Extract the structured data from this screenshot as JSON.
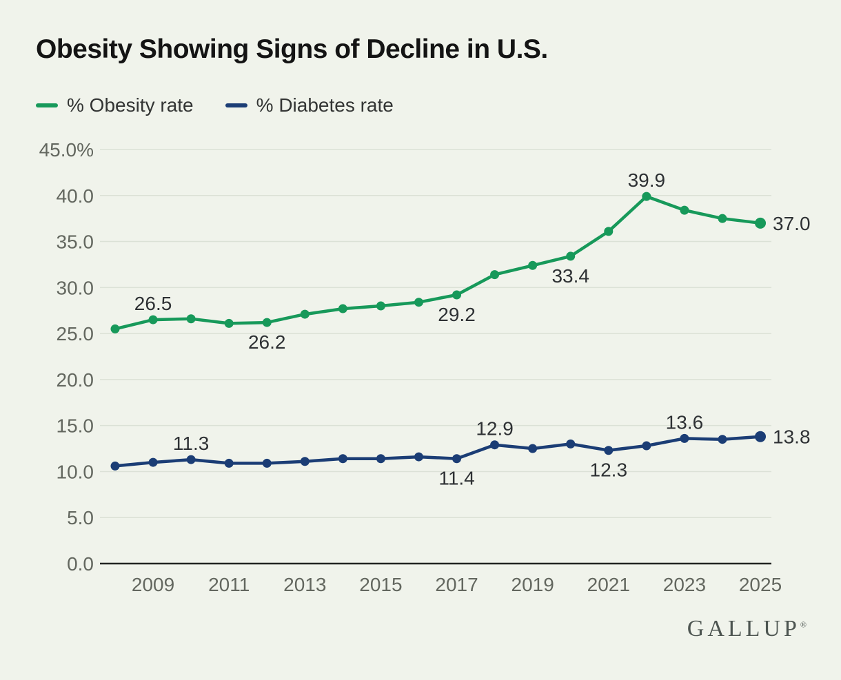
{
  "title": "Obesity Showing Signs of Decline in U.S.",
  "legend": [
    {
      "label": "% Obesity rate",
      "color": "#17995a"
    },
    {
      "label": "% Diabetes rate",
      "color": "#1b3d75"
    }
  ],
  "branding": {
    "logo": "GALLUP",
    "registered": "®"
  },
  "chart_data": {
    "type": "line",
    "x": [
      2008,
      2009,
      2010,
      2011,
      2012,
      2013,
      2014,
      2015,
      2016,
      2017,
      2018,
      2019,
      2020,
      2021,
      2022,
      2023,
      2024,
      2025
    ],
    "series": [
      {
        "name": "% Obesity rate",
        "color": "#17995a",
        "values": [
          25.5,
          26.5,
          26.6,
          26.1,
          26.2,
          27.1,
          27.7,
          28.0,
          28.4,
          29.2,
          31.4,
          32.4,
          33.4,
          36.1,
          39.9,
          38.4,
          37.5,
          37.0
        ]
      },
      {
        "name": "% Diabetes rate",
        "color": "#1b3d75",
        "values": [
          10.6,
          11.0,
          11.3,
          10.9,
          10.9,
          11.1,
          11.4,
          11.4,
          11.6,
          11.4,
          12.9,
          12.5,
          13.0,
          12.3,
          12.8,
          13.6,
          13.5,
          13.8
        ]
      }
    ],
    "annotations": [
      {
        "series": 0,
        "year": 2009,
        "text": "26.5",
        "placement": "above"
      },
      {
        "series": 0,
        "year": 2012,
        "text": "26.2",
        "placement": "below"
      },
      {
        "series": 0,
        "year": 2017,
        "text": "29.2",
        "placement": "below"
      },
      {
        "series": 0,
        "year": 2020,
        "text": "33.4",
        "placement": "below"
      },
      {
        "series": 0,
        "year": 2022,
        "text": "39.9",
        "placement": "above"
      },
      {
        "series": 0,
        "year": 2025,
        "text": "37.0",
        "placement": "right"
      },
      {
        "series": 1,
        "year": 2010,
        "text": "11.3",
        "placement": "above"
      },
      {
        "series": 1,
        "year": 2017,
        "text": "11.4",
        "placement": "below"
      },
      {
        "series": 1,
        "year": 2018,
        "text": "12.9",
        "placement": "above"
      },
      {
        "series": 1,
        "year": 2021,
        "text": "12.3",
        "placement": "below"
      },
      {
        "series": 1,
        "year": 2023,
        "text": "13.6",
        "placement": "above"
      },
      {
        "series": 1,
        "year": 2025,
        "text": "13.8",
        "placement": "right"
      }
    ],
    "yticks": [
      {
        "value": 45,
        "label": "45.0%"
      },
      {
        "value": 40,
        "label": "40.0"
      },
      {
        "value": 35,
        "label": "35.0"
      },
      {
        "value": 30,
        "label": "30.0"
      },
      {
        "value": 25,
        "label": "25.0"
      },
      {
        "value": 20,
        "label": "20.0"
      },
      {
        "value": 15,
        "label": "15.0"
      },
      {
        "value": 10,
        "label": "10.0"
      },
      {
        "value": 5,
        "label": "5.0"
      },
      {
        "value": 0,
        "label": "0.0"
      }
    ],
    "xticks": [
      2009,
      2011,
      2013,
      2015,
      2017,
      2019,
      2021,
      2023,
      2025
    ],
    "ylim": [
      0,
      45
    ],
    "grid": true,
    "legend_position": "top-left",
    "title": "Obesity Showing Signs of Decline in U.S."
  }
}
